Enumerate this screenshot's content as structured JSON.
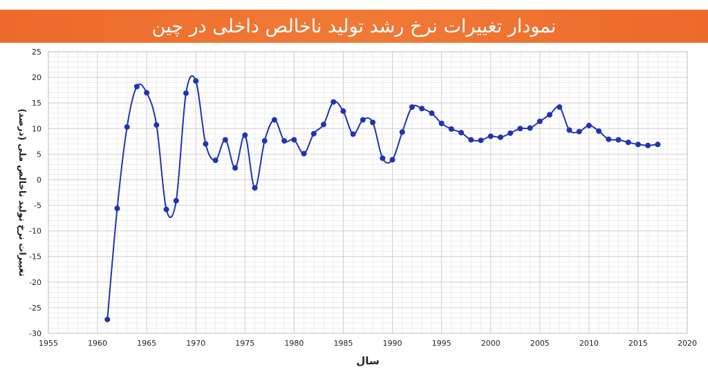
{
  "chart_data": {
    "type": "line",
    "title": "نمودار تغییرات نرخ رشد تولید ناخالص داخلی در چین",
    "xlabel": "سال",
    "ylabel": "تغییرات نرخ تولید ناخالص ملی (درصد)",
    "xlim": [
      1955,
      2020
    ],
    "ylim": [
      -30,
      25
    ],
    "xticks": [
      "1955",
      "1960",
      "1965",
      "1970",
      "1975",
      "1980",
      "1985",
      "1990",
      "1995",
      "2000",
      "2005",
      "2010",
      "2015",
      "2020"
    ],
    "yticks": [
      "25",
      "20",
      "15",
      "10",
      "5",
      "0",
      "-5",
      "-10",
      "-15",
      "-20",
      "-25",
      "-30"
    ],
    "grid": true,
    "legend": "none",
    "color": "#1f33b5",
    "series": [
      {
        "x": [
          1961,
          1962,
          1963,
          1964,
          1965,
          1966,
          1967,
          1968,
          1969,
          1970,
          1971,
          1972,
          1973,
          1974,
          1975,
          1976,
          1977,
          1978,
          1979,
          1980,
          1981,
          1982,
          1983,
          1984,
          1985,
          1986,
          1987,
          1988,
          1989,
          1990,
          1991,
          1992,
          1993,
          1994,
          1995,
          1996,
          1997,
          1998,
          1999,
          2000,
          2001,
          2002,
          2003,
          2004,
          2005,
          2006,
          2007,
          2008,
          2009,
          2010,
          2011,
          2012,
          2013,
          2014,
          2015,
          2016,
          2017
        ],
        "values": [
          -27.3,
          -5.6,
          10.3,
          18.2,
          17.0,
          10.7,
          -5.8,
          -4.1,
          16.9,
          19.3,
          7.0,
          3.8,
          7.8,
          2.3,
          8.7,
          -1.6,
          7.6,
          11.7,
          7.6,
          7.8,
          5.1,
          9.0,
          10.8,
          15.2,
          13.4,
          8.9,
          11.7,
          11.2,
          4.2,
          3.9,
          9.3,
          14.2,
          13.9,
          13.0,
          11.0,
          9.9,
          9.2,
          7.8,
          7.7,
          8.5,
          8.3,
          9.1,
          10.0,
          10.1,
          11.4,
          12.7,
          14.2,
          9.7,
          9.4,
          10.6,
          9.5,
          7.9,
          7.8,
          7.3,
          6.9,
          6.7,
          6.9
        ]
      }
    ]
  }
}
